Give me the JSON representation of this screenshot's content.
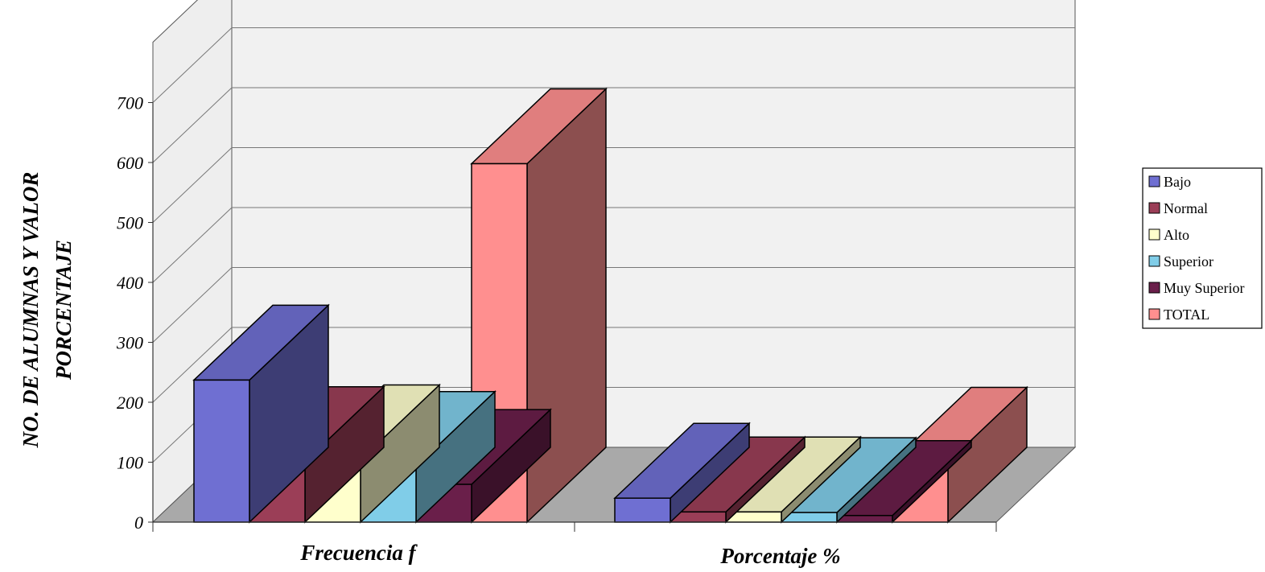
{
  "chart_data": {
    "type": "bar",
    "title": "",
    "xlabel": "",
    "ylabel_lines": [
      "NO. DE ALUMNAS Y VALOR",
      "PORCENTAJE"
    ],
    "ylim": [
      0,
      700
    ],
    "yticks": [
      0,
      100,
      200,
      300,
      400,
      500,
      600,
      700
    ],
    "categories": [
      "Frecuencia f",
      "Porcentaje %"
    ],
    "series": [
      {
        "name": "Bajo",
        "values": [
          237,
          40
        ],
        "color": "#6f6fd2"
      },
      {
        "name": "Normal",
        "values": [
          101,
          17
        ],
        "color": "#9b3e57"
      },
      {
        "name": "Alto",
        "values": [
          104,
          17
        ],
        "color": "#ffffcc"
      },
      {
        "name": "Superior",
        "values": [
          93,
          16
        ],
        "color": "#80cde8"
      },
      {
        "name": "Muy Superior",
        "values": [
          63,
          11
        ],
        "color": "#6a1f4a"
      },
      {
        "name": "TOTAL",
        "values": [
          598,
          100
        ],
        "color": "#ff8f8f"
      }
    ],
    "grid": true,
    "legend_position": "right"
  }
}
